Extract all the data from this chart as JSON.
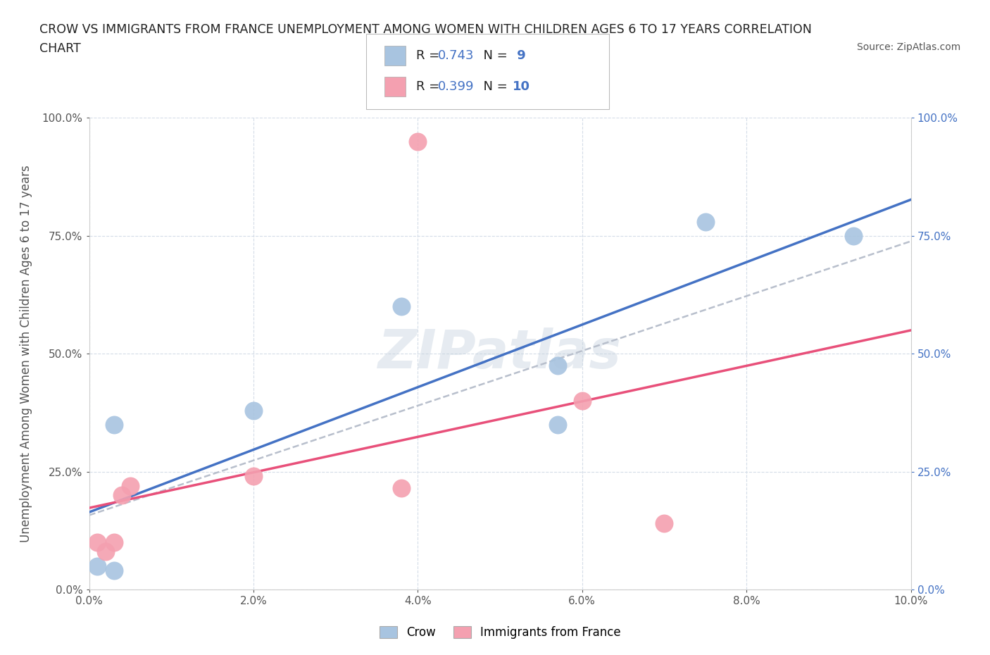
{
  "title_line1": "CROW VS IMMIGRANTS FROM FRANCE UNEMPLOYMENT AMONG WOMEN WITH CHILDREN AGES 6 TO 17 YEARS CORRELATION",
  "title_line2": "CHART",
  "source": "Source: ZipAtlas.com",
  "ylabel": "Unemployment Among Women with Children Ages 6 to 17 years",
  "xlim": [
    0.0,
    0.1
  ],
  "ylim": [
    0.0,
    1.0
  ],
  "xtick_labels": [
    "0.0%",
    "2.0%",
    "4.0%",
    "6.0%",
    "8.0%",
    "10.0%"
  ],
  "xtick_vals": [
    0.0,
    0.02,
    0.04,
    0.06,
    0.08,
    0.1
  ],
  "ytick_labels": [
    "0.0%",
    "25.0%",
    "50.0%",
    "75.0%",
    "100.0%"
  ],
  "ytick_vals": [
    0.0,
    0.25,
    0.5,
    0.75,
    1.0
  ],
  "crow_color": "#a8c4e0",
  "france_color": "#f4a0b0",
  "crow_line_color": "#4472c4",
  "france_line_color": "#e8507a",
  "trend_line_color": "#b8bfcc",
  "crow_R": "0.743",
  "crow_N": "9",
  "france_R": "0.399",
  "france_N": "10",
  "crow_x": [
    0.001,
    0.003,
    0.003,
    0.02,
    0.038,
    0.057,
    0.057,
    0.075,
    0.093
  ],
  "crow_y": [
    0.05,
    0.04,
    0.35,
    0.38,
    0.6,
    0.475,
    0.35,
    0.78,
    0.75
  ],
  "france_x": [
    0.001,
    0.002,
    0.003,
    0.004,
    0.005,
    0.02,
    0.038,
    0.04,
    0.06,
    0.07
  ],
  "france_y": [
    0.1,
    0.08,
    0.1,
    0.2,
    0.22,
    0.24,
    0.215,
    0.95,
    0.4,
    0.14
  ],
  "watermark": "ZIPatlas",
  "background_color": "#ffffff",
  "grid_color": "#d4dce8",
  "right_tick_color": "#4472c4",
  "label_color": "#555555"
}
